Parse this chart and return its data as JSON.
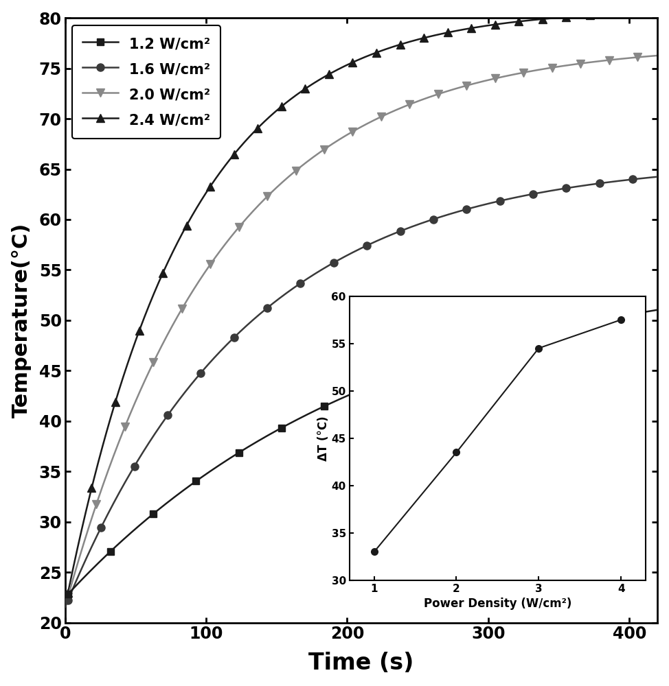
{
  "title": "",
  "xlabel": "Time (s)",
  "ylabel": "Temperature(°C)",
  "xlim": [
    0,
    420
  ],
  "ylim": [
    20,
    80
  ],
  "xticks": [
    0,
    100,
    200,
    300,
    400
  ],
  "yticks": [
    20,
    25,
    30,
    35,
    40,
    45,
    50,
    55,
    60,
    65,
    70,
    75,
    80
  ],
  "series": [
    {
      "label": "1.2 W/cm²",
      "T0": 22.5,
      "T_inf": 56.0,
      "tau": 220,
      "color": "#1a1a1a",
      "marker": "s",
      "markersize": 7,
      "linewidth": 1.8,
      "markevery": 18
    },
    {
      "label": "1.6 W/cm²",
      "T0": 21.5,
      "T_inf": 66.0,
      "tau": 130,
      "color": "#3a3a3a",
      "marker": "o",
      "markersize": 8,
      "linewidth": 1.8,
      "markevery": 14
    },
    {
      "label": "2.0 W/cm²",
      "T0": 21.5,
      "T_inf": 77.5,
      "tau": 110,
      "color": "#888888",
      "marker": "v",
      "markersize": 8,
      "linewidth": 1.8,
      "markevery": 12
    },
    {
      "label": "2.4 W/cm²",
      "T0": 21.5,
      "T_inf": 81.0,
      "tau": 85,
      "color": "#1a1a1a",
      "marker": "^",
      "markersize": 8,
      "linewidth": 1.8,
      "markevery": 10
    }
  ],
  "inset": {
    "x": [
      1,
      2,
      3,
      4
    ],
    "y": [
      33.0,
      43.5,
      54.5,
      57.5
    ],
    "xlabel": "Power Density (W/cm²)",
    "ylabel": "ΔT (°C)",
    "xlim": [
      0.7,
      4.3
    ],
    "ylim": [
      30,
      60
    ],
    "xticks": [
      1,
      2,
      3,
      4
    ],
    "yticks": [
      30,
      35,
      40,
      45,
      50,
      55,
      60
    ],
    "color": "#1a1a1a",
    "marker": "o",
    "markersize": 7,
    "linewidth": 1.5
  }
}
